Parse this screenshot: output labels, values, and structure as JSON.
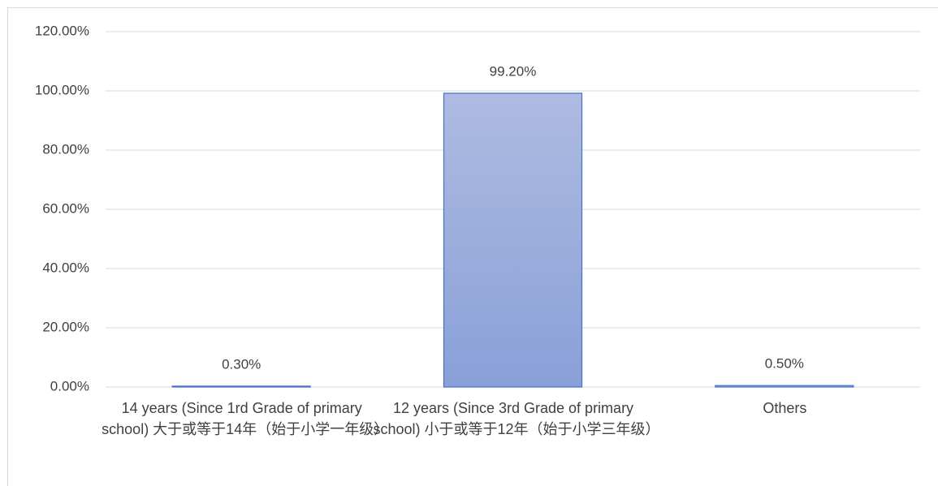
{
  "chart_data": {
    "type": "bar",
    "categories": [
      "14 years (Since 1rd Grade of primary school) 大于或等于14年（始于小学一年级）",
      "12 years (Since 3rd Grade of primary school) 小于或等于12年（始于小学三年级）",
      "Others"
    ],
    "values": [
      0.3,
      99.2,
      0.5
    ],
    "value_labels": [
      "0.30%",
      "99.20%",
      "0.50%"
    ],
    "color": "#4472c4",
    "ylim": [
      0,
      120
    ],
    "yticks": [
      {
        "value": 0,
        "label": "0.00%"
      },
      {
        "value": 20,
        "label": "20.00%"
      },
      {
        "value": 40,
        "label": "40.00%"
      },
      {
        "value": 60,
        "label": "60.00%"
      },
      {
        "value": 80,
        "label": "80.00%"
      },
      {
        "value": 100,
        "label": "100.00%"
      },
      {
        "value": 120,
        "label": "120.00%"
      }
    ],
    "grid": true
  }
}
